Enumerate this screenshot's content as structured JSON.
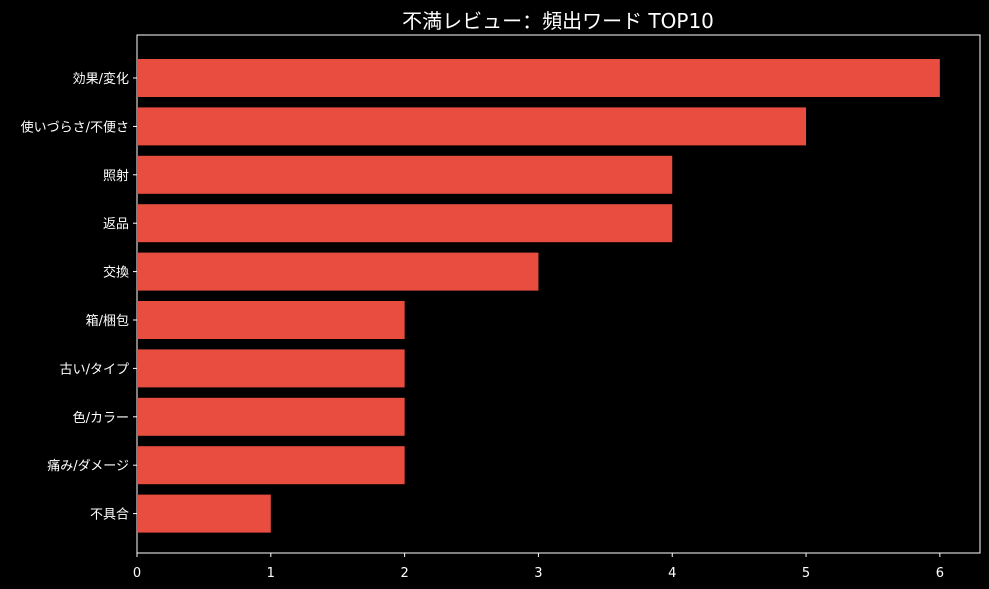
{
  "chart_data": {
    "type": "bar",
    "orientation": "horizontal",
    "title": "不満レビュー：頻出ワード TOP10",
    "xlabel": "",
    "ylabel": "",
    "categories": [
      "効果/変化",
      "使いづらさ/不便さ",
      "照射",
      "返品",
      "交換",
      "箱/梱包",
      "古い/タイプ",
      "色/カラー",
      "痛み/ダメージ",
      "不具合"
    ],
    "values": [
      6,
      5,
      4,
      4,
      3,
      2,
      2,
      2,
      2,
      1
    ],
    "xlim": [
      0,
      6.3
    ],
    "xticks": [
      0,
      1,
      2,
      3,
      4,
      5,
      6
    ],
    "grid": false,
    "legend": "none",
    "colors": {
      "background": "#000000",
      "bar": "#e84d3f",
      "text": "#ffffff",
      "axis": "#ffffff"
    }
  }
}
